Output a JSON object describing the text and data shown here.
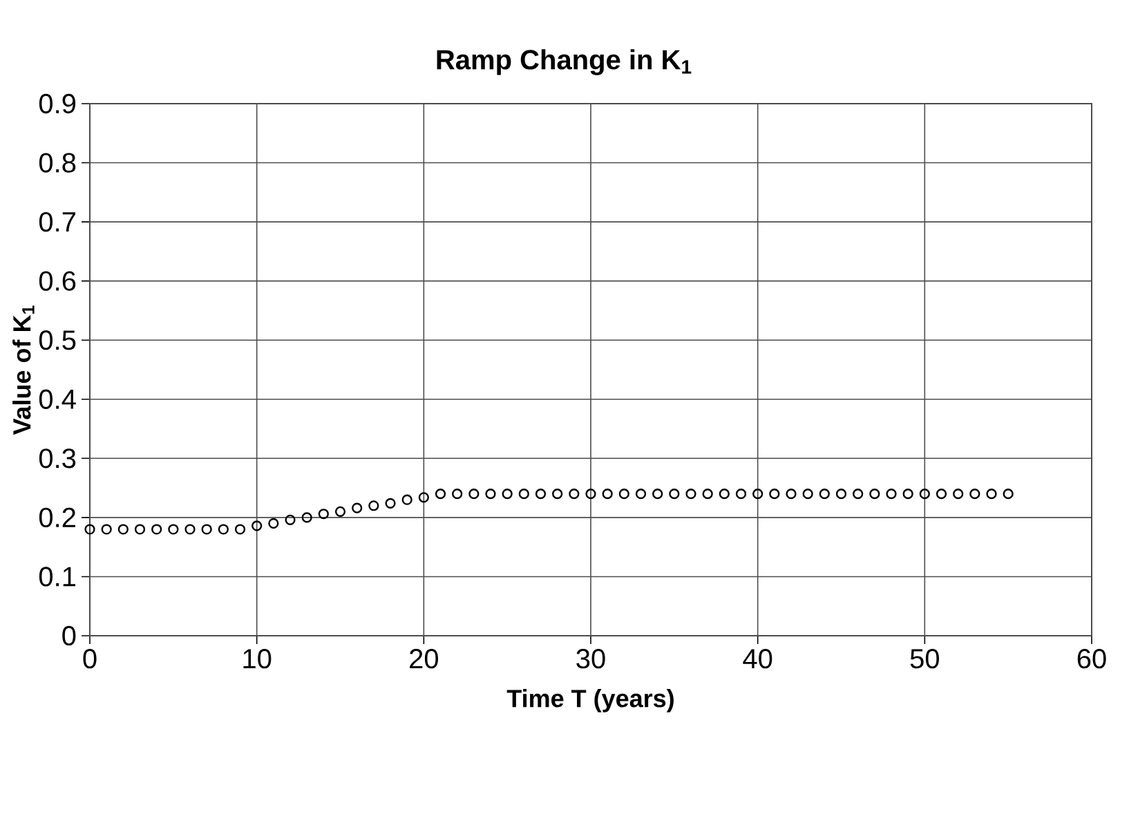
{
  "chart_data": {
    "type": "scatter",
    "title": "Ramp Change in **K$_{1}$**",
    "xlabel": "Time  T   (years)",
    "ylabel": "Value of K$_{1}$",
    "x": [
      0,
      1,
      2,
      3,
      4,
      5,
      6,
      7,
      8,
      9,
      10,
      11,
      12,
      13,
      14,
      15,
      16,
      17,
      18,
      19,
      20,
      21,
      22,
      23,
      24,
      25,
      26,
      27,
      28,
      29,
      30,
      31,
      32,
      33,
      34,
      35,
      36,
      37,
      38,
      39,
      40,
      41,
      42,
      43,
      44,
      45,
      46,
      47,
      48,
      49,
      50,
      51,
      52,
      53,
      54,
      55
    ],
    "series": [
      {
        "color": "#000000",
        "values": [
          0.18,
          0.18,
          0.18,
          0.18,
          0.18,
          0.18,
          0.18,
          0.18,
          0.18,
          0.18,
          0.186,
          0.19,
          0.196,
          0.2,
          0.206,
          0.21,
          0.216,
          0.22,
          0.224,
          0.23,
          0.234,
          0.24,
          0.24,
          0.24,
          0.24,
          0.24,
          0.24,
          0.24,
          0.24,
          0.24,
          0.24,
          0.24,
          0.24,
          0.24,
          0.24,
          0.24,
          0.24,
          0.24,
          0.24,
          0.24,
          0.24,
          0.24,
          0.24,
          0.24,
          0.24,
          0.24,
          0.24,
          0.24,
          0.24,
          0.24,
          0.24,
          0.24,
          0.24,
          0.24,
          0.24,
          0.24
        ]
      }
    ],
    "xlim": [
      0,
      60
    ],
    "ylim": [
      0,
      0.9
    ],
    "xticks": [
      0,
      10,
      20,
      30,
      40,
      50,
      60
    ],
    "yticks": [
      0,
      0.1,
      0.2,
      0.3,
      0.4,
      0.5,
      0.6,
      0.7,
      0.8,
      0.9
    ],
    "grid": true,
    "marker": "circle"
  }
}
